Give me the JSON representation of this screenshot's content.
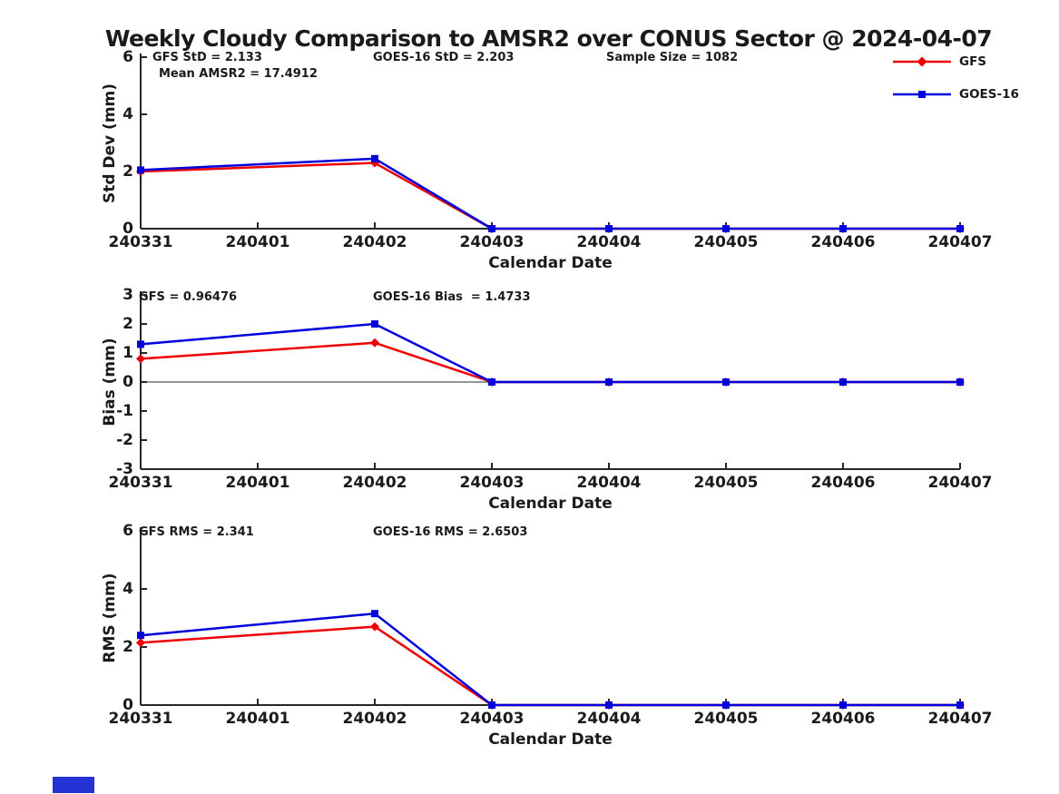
{
  "title": "Weekly Cloudy Comparison to AMSR2 over CONUS Sector @ 2024-04-07",
  "colors": {
    "gfs_red": "#EE0000",
    "goes_blue": "#0000DD",
    "axis": "#262626",
    "text": "#1a1a1a",
    "zero_line": "#555555",
    "corner_artifact_blue": "#2533D6"
  },
  "legend": {
    "items": [
      {
        "label": "GFS",
        "color": "#EE0000",
        "marker": "diamond"
      },
      {
        "label": "GOES-16",
        "color": "#0000DD",
        "marker": "square"
      }
    ]
  },
  "chart_data": [
    {
      "panel": "std-dev",
      "type": "line",
      "ylabel": "Std Dev (mm)",
      "xlabel": "Calendar Date",
      "ylim": [
        0,
        6
      ],
      "yticks": [
        0,
        2,
        4,
        6
      ],
      "grid": false,
      "categories": [
        "240331",
        "240401",
        "240402",
        "240403",
        "240404",
        "240405",
        "240406",
        "240407"
      ],
      "series": [
        {
          "name": "GFS",
          "color": "#EE0000",
          "marker": "diamond",
          "x": [
            "240331",
            "240402",
            "240403",
            "240404",
            "240405",
            "240406",
            "240407"
          ],
          "values": [
            2.0,
            2.3,
            0,
            0,
            0,
            0,
            0
          ]
        },
        {
          "name": "GOES-16",
          "color": "#0000DD",
          "marker": "square",
          "x": [
            "240331",
            "240402",
            "240403",
            "240404",
            "240405",
            "240406",
            "240407"
          ],
          "values": [
            2.05,
            2.45,
            0,
            0,
            0,
            0,
            0
          ]
        }
      ],
      "annotations": [
        {
          "text": "GFS StD = 2.133"
        },
        {
          "text": "GOES-16 StD = 2.203"
        },
        {
          "text": "Sample Size = 1082"
        },
        {
          "text": "Mean AMSR2 = 17.4912"
        }
      ],
      "zero_line": false
    },
    {
      "panel": "bias",
      "type": "line",
      "ylabel": "Bias (mm)",
      "xlabel": "Calendar Date",
      "ylim": [
        -3,
        3
      ],
      "yticks": [
        -3,
        -2,
        -1,
        0,
        1,
        2,
        3
      ],
      "grid": false,
      "categories": [
        "240331",
        "240401",
        "240402",
        "240403",
        "240404",
        "240405",
        "240406",
        "240407"
      ],
      "series": [
        {
          "name": "GFS",
          "color": "#EE0000",
          "marker": "diamond",
          "x": [
            "240331",
            "240402",
            "240403",
            "240404",
            "240405",
            "240406",
            "240407"
          ],
          "values": [
            0.8,
            1.35,
            0,
            0,
            0,
            0,
            0
          ]
        },
        {
          "name": "GOES-16",
          "color": "#0000DD",
          "marker": "square",
          "x": [
            "240331",
            "240402",
            "240403",
            "240404",
            "240405",
            "240406",
            "240407"
          ],
          "values": [
            1.3,
            2.0,
            0,
            0,
            0,
            0,
            0
          ]
        }
      ],
      "annotations": [
        {
          "text": "GFS = 0.96476"
        },
        {
          "text": "GOES-16 Bias  = 1.4733"
        }
      ],
      "zero_line": true
    },
    {
      "panel": "rms",
      "type": "line",
      "ylabel": "RMS (mm)",
      "xlabel": "Calendar Date",
      "ylim": [
        0,
        6
      ],
      "yticks": [
        0,
        2,
        4,
        6
      ],
      "grid": false,
      "categories": [
        "240331",
        "240401",
        "240402",
        "240403",
        "240404",
        "240405",
        "240406",
        "240407"
      ],
      "series": [
        {
          "name": "GFS",
          "color": "#EE0000",
          "marker": "diamond",
          "x": [
            "240331",
            "240402",
            "240403",
            "240404",
            "240405",
            "240406",
            "240407"
          ],
          "values": [
            2.15,
            2.7,
            0,
            0,
            0,
            0,
            0
          ]
        },
        {
          "name": "GOES-16",
          "color": "#0000DD",
          "marker": "square",
          "x": [
            "240331",
            "240402",
            "240403",
            "240404",
            "240405",
            "240406",
            "240407"
          ],
          "values": [
            2.4,
            3.15,
            0,
            0,
            0,
            0,
            0
          ]
        }
      ],
      "annotations": [
        {
          "text": "GFS RMS = 2.341"
        },
        {
          "text": "GOES-16 RMS = 2.6503"
        }
      ],
      "zero_line": false
    }
  ]
}
